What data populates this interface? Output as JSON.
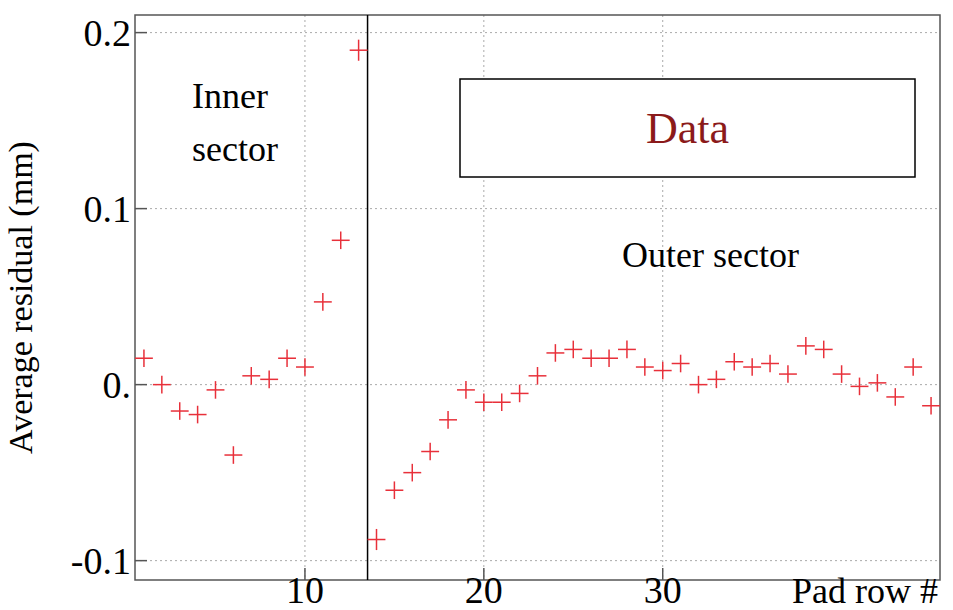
{
  "chart_data": {
    "type": "scatter",
    "y_label": "Average residual (mm)",
    "x_label": "Pad row #",
    "annotations": {
      "inner": "Inner sector",
      "outer": "Outer sector",
      "box": "Data",
      "divider": 13.5
    },
    "series": [
      {
        "name": "Data",
        "color": "#e8303a",
        "marker": "cross",
        "x": [
          1,
          2,
          3,
          4,
          5,
          6,
          7,
          8,
          9,
          10,
          11,
          12,
          13,
          14,
          15,
          16,
          17,
          18,
          19,
          20,
          21,
          22,
          23,
          24,
          25,
          26,
          27,
          28,
          29,
          30,
          31,
          32,
          33,
          34,
          35,
          36,
          37,
          38,
          39,
          40,
          41,
          42,
          43,
          44,
          45
        ],
        "values": [
          0.015,
          0.0,
          -0.015,
          -0.017,
          -0.003,
          -0.04,
          0.005,
          0.003,
          0.015,
          0.01,
          0.047,
          0.082,
          0.19,
          -0.088,
          -0.06,
          -0.05,
          -0.038,
          -0.02,
          -0.003,
          -0.01,
          -0.01,
          -0.005,
          0.005,
          0.018,
          0.02,
          0.015,
          0.015,
          0.02,
          0.01,
          0.008,
          0.012,
          0.0,
          0.003,
          0.013,
          0.01,
          0.012,
          0.006,
          0.022,
          0.02,
          0.006,
          -0.001,
          0.001,
          -0.007,
          0.01,
          -0.012
        ],
        "errors": [
          0.005,
          0.005,
          0.005,
          0.005,
          0.005,
          0.005,
          0.005,
          0.005,
          0.005,
          0.005,
          0.005,
          0.005,
          0.006,
          0.006,
          0.005,
          0.005,
          0.005,
          0.005,
          0.005,
          0.005,
          0.005,
          0.005,
          0.005,
          0.005,
          0.005,
          0.005,
          0.005,
          0.005,
          0.005,
          0.005,
          0.005,
          0.005,
          0.005,
          0.005,
          0.005,
          0.005,
          0.005,
          0.005,
          0.005,
          0.005,
          0.005,
          0.005,
          0.005,
          0.005,
          0.005
        ]
      }
    ],
    "xlim": [
      0.5,
      45.5
    ],
    "ylim": [
      -0.111,
      0.21
    ],
    "xticks": [
      10,
      20,
      30
    ],
    "yticks": [
      {
        "value": -0.1,
        "label": "-0.1"
      },
      {
        "value": 0,
        "label": "0."
      },
      {
        "value": 0.1,
        "label": "0.1"
      },
      {
        "value": 0.2,
        "label": "0.2"
      }
    ],
    "grid": true
  }
}
